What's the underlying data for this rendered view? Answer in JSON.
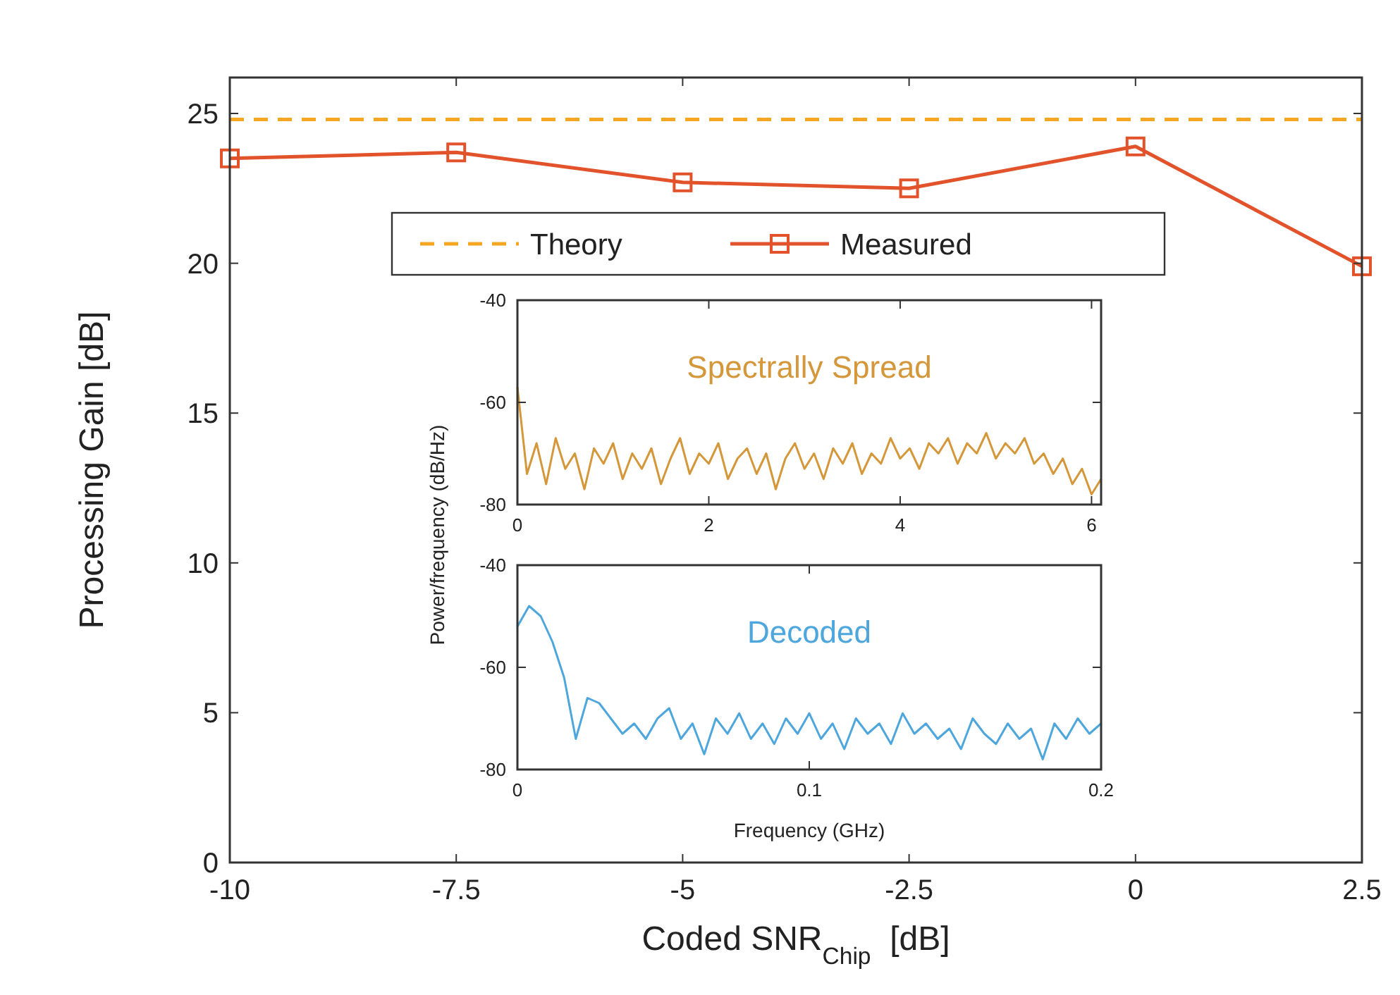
{
  "chart_data": [
    {
      "type": "line",
      "xlabel": "Coded SNR$_{Chip}$  [dB]",
      "ylabel": "Processing Gain [dB]",
      "x": [
        -10,
        -7.5,
        -5,
        -2.5,
        0,
        2.5
      ],
      "xlim": [
        -10,
        2.5
      ],
      "xticks": [
        -10,
        -7.5,
        -5,
        -2.5,
        0,
        2.5
      ],
      "ylim": [
        0,
        26.2
      ],
      "yticks": [
        0,
        5,
        10,
        15,
        20,
        25
      ],
      "legend": "top",
      "grid": false,
      "series": [
        {
          "name": "Theory",
          "color": "#f5a623",
          "x": [
            -10,
            2.5
          ],
          "values": [
            24.8,
            24.8
          ],
          "line_style": "dashed",
          "marker": "none"
        },
        {
          "name": "Measured",
          "color": "#e2532b",
          "values": [
            23.5,
            23.7,
            22.7,
            22.5,
            23.9,
            19.9
          ],
          "line_style": "solid",
          "marker": "square"
        }
      ]
    },
    {
      "type": "line",
      "ylabel": "Power/frequency (dB/Hz)",
      "annotations": [
        "Spectrally Spread"
      ],
      "xlim": [
        0,
        6.1
      ],
      "xticks": [
        0,
        2,
        4,
        6
      ],
      "ylim": [
        -80,
        -40
      ],
      "yticks": [
        -80,
        -60,
        -40
      ],
      "grid": false,
      "series": [
        {
          "color": "#d4973a",
          "x": [
            0,
            0.1,
            0.2,
            0.3,
            0.4,
            0.5,
            0.6,
            0.7,
            0.8,
            0.9,
            1.0,
            1.1,
            1.2,
            1.3,
            1.4,
            1.5,
            1.6,
            1.7,
            1.8,
            1.9,
            2.0,
            2.1,
            2.2,
            2.3,
            2.4,
            2.5,
            2.6,
            2.7,
            2.8,
            2.9,
            3.0,
            3.1,
            3.2,
            3.3,
            3.4,
            3.5,
            3.6,
            3.7,
            3.8,
            3.9,
            4.0,
            4.1,
            4.2,
            4.3,
            4.4,
            4.5,
            4.6,
            4.7,
            4.8,
            4.9,
            5.0,
            5.1,
            5.2,
            5.3,
            5.4,
            5.5,
            5.6,
            5.7,
            5.8,
            5.9,
            6.0,
            6.1
          ],
          "values": [
            -57,
            -74,
            -68,
            -76,
            -67,
            -73,
            -70,
            -77,
            -69,
            -72,
            -68,
            -75,
            -70,
            -73,
            -69,
            -76,
            -71,
            -67,
            -74,
            -70,
            -72,
            -68,
            -75,
            -71,
            -69,
            -74,
            -70,
            -77,
            -71,
            -68,
            -73,
            -70,
            -75,
            -69,
            -72,
            -68,
            -74,
            -70,
            -72,
            -67,
            -71,
            -69,
            -73,
            -68,
            -70,
            -67,
            -72,
            -68,
            -70,
            -66,
            -71,
            -68,
            -70,
            -67,
            -72,
            -70,
            -74,
            -71,
            -76,
            -73,
            -78,
            -75
          ],
          "line_style": "solid",
          "marker": "none"
        }
      ]
    },
    {
      "type": "line",
      "xlabel": "Frequency (GHz)",
      "annotations": [
        "Decoded"
      ],
      "xlim": [
        0,
        0.2
      ],
      "xticks": [
        0,
        0.1,
        0.2
      ],
      "ylim": [
        -80,
        -40
      ],
      "yticks": [
        -80,
        -60,
        -40
      ],
      "grid": false,
      "series": [
        {
          "color": "#4da6dc",
          "x": [
            0,
            0.004,
            0.008,
            0.012,
            0.016,
            0.02,
            0.024,
            0.028,
            0.032,
            0.036,
            0.04,
            0.044,
            0.048,
            0.052,
            0.056,
            0.06,
            0.064,
            0.068,
            0.072,
            0.076,
            0.08,
            0.084,
            0.088,
            0.092,
            0.096,
            0.1,
            0.104,
            0.108,
            0.112,
            0.116,
            0.12,
            0.124,
            0.128,
            0.132,
            0.136,
            0.14,
            0.144,
            0.148,
            0.152,
            0.156,
            0.16,
            0.164,
            0.168,
            0.172,
            0.176,
            0.18,
            0.184,
            0.188,
            0.192,
            0.196,
            0.2
          ],
          "values": [
            -52,
            -48,
            -50,
            -55,
            -62,
            -74,
            -66,
            -67,
            -70,
            -73,
            -71,
            -74,
            -70,
            -68,
            -74,
            -71,
            -77,
            -70,
            -73,
            -69,
            -74,
            -71,
            -75,
            -70,
            -73,
            -69,
            -74,
            -71,
            -76,
            -70,
            -73,
            -71,
            -75,
            -69,
            -73,
            -71,
            -74,
            -72,
            -76,
            -70,
            -73,
            -75,
            -71,
            -74,
            -72,
            -78,
            -71,
            -74,
            -70,
            -73,
            -71
          ],
          "line_style": "solid",
          "marker": "none"
        }
      ]
    }
  ]
}
